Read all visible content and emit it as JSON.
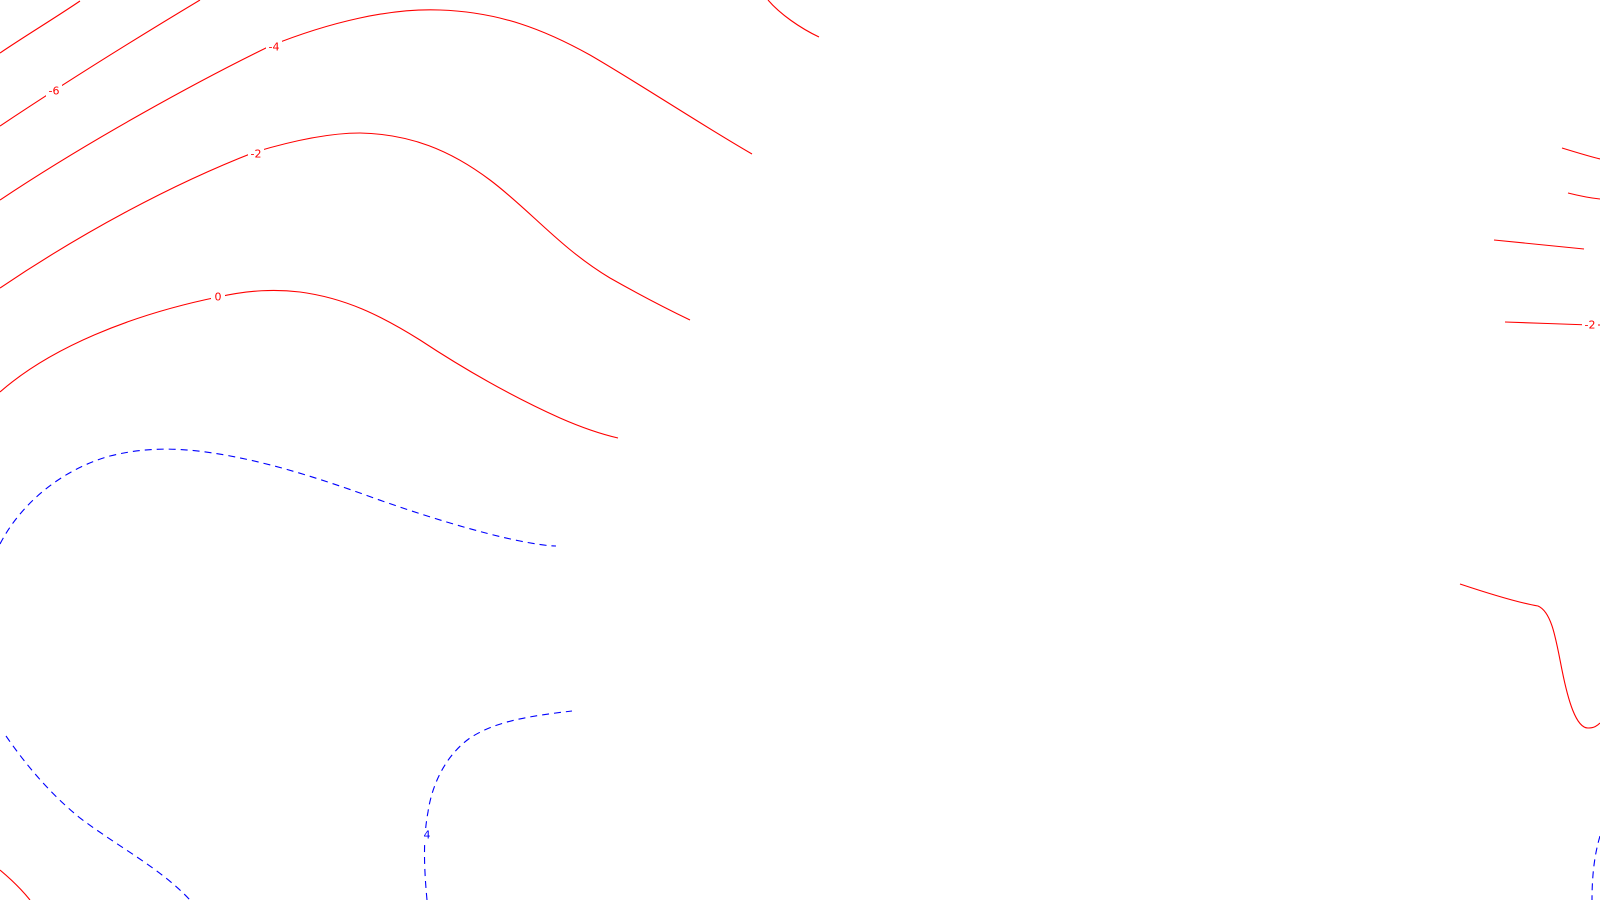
{
  "map": {
    "colors": {
      "negative_contour": "#ff0000",
      "positive_contour": "#0000ff",
      "background": "#ffffff"
    },
    "contours": [
      {
        "id": "top-left-a",
        "style": "solid",
        "polarity": "negative",
        "label": ""
      },
      {
        "id": "minus-6",
        "style": "solid",
        "polarity": "negative",
        "label": "-6"
      },
      {
        "id": "minus-4",
        "style": "solid",
        "polarity": "negative",
        "label": "-4"
      },
      {
        "id": "minus-2",
        "style": "solid",
        "polarity": "negative",
        "label": "-2"
      },
      {
        "id": "zero",
        "style": "solid",
        "polarity": "negative",
        "label": "0"
      },
      {
        "id": "top-center-stub",
        "style": "solid",
        "polarity": "negative",
        "label": ""
      },
      {
        "id": "right-1",
        "style": "solid",
        "polarity": "negative",
        "label": ""
      },
      {
        "id": "right-2",
        "style": "solid",
        "polarity": "negative",
        "label": ""
      },
      {
        "id": "right-3",
        "style": "solid",
        "polarity": "negative",
        "label": ""
      },
      {
        "id": "right-minus-2",
        "style": "solid",
        "polarity": "negative",
        "label": "-2"
      },
      {
        "id": "right-lower",
        "style": "solid",
        "polarity": "negative",
        "label": ""
      },
      {
        "id": "bottom-left-red",
        "style": "solid",
        "polarity": "negative",
        "label": ""
      },
      {
        "id": "blue-upper",
        "style": "dashed",
        "polarity": "positive",
        "label": ""
      },
      {
        "id": "blue-left-lower",
        "style": "dashed",
        "polarity": "positive",
        "label": ""
      },
      {
        "id": "blue-4",
        "style": "dashed",
        "polarity": "positive",
        "label": "4"
      },
      {
        "id": "blue-right-corner",
        "style": "dashed",
        "polarity": "positive",
        "label": ""
      }
    ]
  }
}
